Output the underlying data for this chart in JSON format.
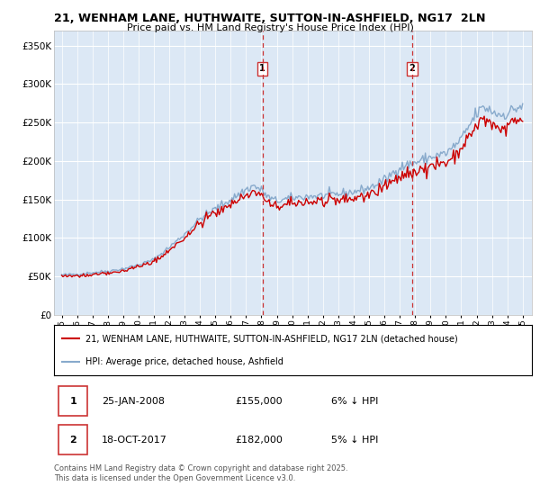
{
  "title_line1": "21, WENHAM LANE, HUTHWAITE, SUTTON-IN-ASHFIELD, NG17  2LN",
  "title_line2": "Price paid vs. HM Land Registry's House Price Index (HPI)",
  "ylabel_ticks": [
    "£0",
    "£50K",
    "£100K",
    "£150K",
    "£200K",
    "£250K",
    "£300K",
    "£350K"
  ],
  "ytick_values": [
    0,
    50000,
    100000,
    150000,
    200000,
    250000,
    300000,
    350000
  ],
  "ylim": [
    0,
    370000
  ],
  "xlim_start": 1994.5,
  "xlim_end": 2025.6,
  "years_start": 1995,
  "years_end": 2025,
  "sale1_x": 2008.07,
  "sale1_price": 155000,
  "sale1_label": "25-JAN-2008",
  "sale1_pct": "6% ↓ HPI",
  "sale2_x": 2017.8,
  "sale2_price": 182000,
  "sale2_label": "18-OCT-2017",
  "sale2_pct": "5% ↓ HPI",
  "legend_line1": "21, WENHAM LANE, HUTHWAITE, SUTTON-IN-ASHFIELD, NG17 2LN (detached house)",
  "legend_line2": "HPI: Average price, detached house, Ashfield",
  "footer": "Contains HM Land Registry data © Crown copyright and database right 2025.\nThis data is licensed under the Open Government Licence v3.0.",
  "line_color_red": "#cc0000",
  "line_color_blue": "#88aacc",
  "background_plot": "#dce8f5",
  "grid_color": "#ffffff",
  "annotation_box_color": "#cc3333"
}
